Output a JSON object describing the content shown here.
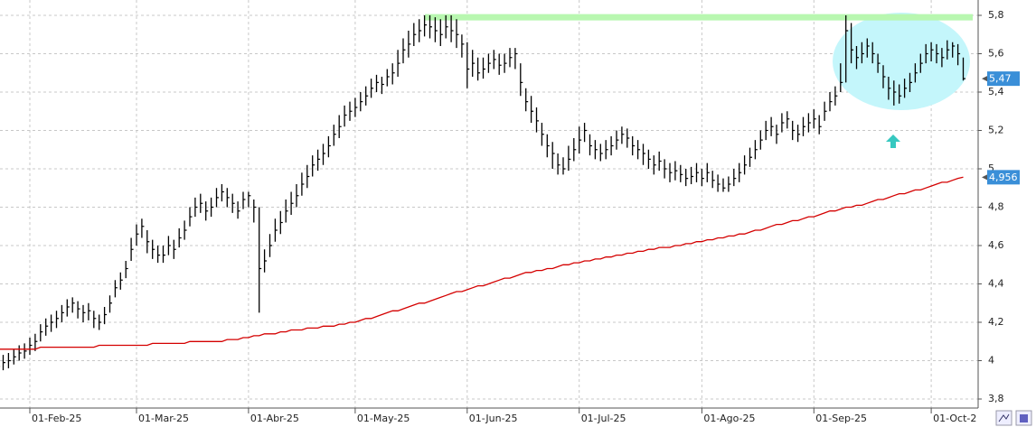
{
  "chart_data": {
    "type": "ohlc",
    "categories": [
      null,
      null,
      null,
      null,
      null,
      null,
      "01-Feb-25",
      null,
      null,
      null,
      null,
      null,
      null,
      null,
      null,
      null,
      null,
      null,
      null,
      null,
      null,
      null,
      null,
      null,
      null,
      null,
      "01-Mar-25",
      null,
      null,
      null,
      null,
      null,
      null,
      null,
      null,
      null,
      null,
      null,
      null,
      null,
      null,
      null,
      null,
      null,
      null,
      null,
      null,
      "01-Abr-25",
      null,
      null,
      null,
      null,
      null,
      null,
      null,
      null,
      null,
      null,
      null,
      null,
      null,
      null,
      null,
      null,
      null,
      null,
      null,
      "01-May-25",
      null,
      null,
      null,
      null,
      null,
      null,
      null,
      null,
      null,
      null,
      null,
      null,
      null,
      null,
      null,
      null,
      null,
      null,
      null,
      null,
      "01-Jun-25",
      null,
      null,
      null,
      null,
      null,
      null,
      null,
      null,
      null,
      null,
      null,
      null,
      null,
      null,
      null,
      null,
      null,
      null,
      null,
      null,
      "01-Jul-25",
      null,
      null,
      null,
      null,
      null,
      null,
      null,
      null,
      null,
      null,
      null,
      null,
      null,
      null,
      null,
      null,
      null,
      null,
      null,
      null,
      null,
      null,
      "01-Ago-25",
      null,
      null,
      null,
      null,
      null,
      null,
      null,
      null,
      null,
      null,
      null,
      null,
      null,
      null,
      null,
      null,
      null,
      null,
      null,
      null,
      "01-Sep-25",
      null,
      null,
      null,
      null,
      null,
      null,
      null,
      null,
      null,
      null,
      null,
      null,
      null,
      null,
      null,
      null,
      null,
      null,
      null,
      null,
      null,
      "01-Oct-2",
      null,
      null,
      null,
      null,
      null,
      null
    ],
    "ohlc": {
      "color": "#000000",
      "close": [
        3.97,
        3.99,
        4.0,
        4.02,
        4.04,
        4.05,
        4.08,
        4.1,
        4.15,
        4.18,
        4.2,
        4.22,
        4.25,
        4.28,
        4.3,
        4.27,
        4.25,
        4.26,
        4.22,
        4.2,
        4.24,
        4.3,
        4.38,
        4.42,
        4.48,
        4.58,
        4.66,
        4.7,
        4.62,
        4.58,
        4.55,
        4.55,
        4.6,
        4.58,
        4.64,
        4.68,
        4.75,
        4.8,
        4.82,
        4.78,
        4.8,
        4.85,
        4.88,
        4.85,
        4.82,
        4.78,
        4.84,
        4.86,
        4.8,
        4.48,
        4.52,
        4.6,
        4.68,
        4.72,
        4.78,
        4.82,
        4.86,
        4.92,
        4.96,
        5.02,
        5.05,
        5.08,
        5.12,
        5.18,
        5.22,
        5.28,
        5.3,
        5.32,
        5.35,
        5.38,
        5.42,
        5.45,
        5.44,
        5.48,
        5.5,
        5.55,
        5.62,
        5.65,
        5.7,
        5.72,
        5.75,
        5.74,
        5.72,
        5.7,
        5.74,
        5.72,
        5.7,
        5.65,
        5.52,
        5.55,
        5.5,
        5.52,
        5.55,
        5.57,
        5.54,
        5.55,
        5.58,
        5.6,
        5.45,
        5.35,
        5.3,
        5.25,
        5.18,
        5.12,
        5.08,
        5.02,
        5.0,
        5.05,
        5.1,
        5.15,
        5.2,
        5.12,
        5.1,
        5.08,
        5.1,
        5.12,
        5.15,
        5.18,
        5.16,
        5.12,
        5.1,
        5.08,
        5.05,
        5.02,
        5.04,
        5.0,
        4.98,
        4.99,
        4.97,
        4.95,
        4.96,
        4.98,
        4.95,
        4.98,
        4.94,
        4.92,
        4.9,
        4.92,
        4.95,
        4.98,
        5.02,
        5.06,
        5.1,
        5.15,
        5.2,
        5.22,
        5.18,
        5.24,
        5.26,
        5.2,
        5.18,
        5.22,
        5.24,
        5.26,
        5.22,
        5.3,
        5.35,
        5.38,
        5.45,
        5.72,
        5.62,
        5.58,
        5.6,
        5.64,
        5.6,
        5.55,
        5.48,
        5.42,
        5.4,
        5.38,
        5.42,
        5.45,
        5.5,
        5.55,
        5.6,
        5.62,
        5.6,
        5.58,
        5.62,
        5.64,
        5.6,
        5.47
      ],
      "high": [
        4.01,
        4.03,
        4.04,
        4.06,
        4.08,
        4.09,
        4.12,
        4.14,
        4.19,
        4.22,
        4.24,
        4.26,
        4.29,
        4.32,
        4.33,
        4.31,
        4.29,
        4.3,
        4.26,
        4.24,
        4.28,
        4.34,
        4.42,
        4.46,
        4.52,
        4.64,
        4.71,
        4.74,
        4.68,
        4.63,
        4.6,
        4.6,
        4.65,
        4.63,
        4.69,
        4.73,
        4.8,
        4.85,
        4.87,
        4.83,
        4.85,
        4.9,
        4.92,
        4.9,
        4.87,
        4.83,
        4.88,
        4.88,
        4.84,
        4.8,
        4.58,
        4.66,
        4.74,
        4.78,
        4.84,
        4.88,
        4.92,
        4.98,
        5.02,
        5.07,
        5.1,
        5.13,
        5.17,
        5.23,
        5.28,
        5.33,
        5.35,
        5.37,
        5.4,
        5.43,
        5.47,
        5.49,
        5.48,
        5.52,
        5.55,
        5.62,
        5.68,
        5.72,
        5.76,
        5.78,
        5.8,
        5.8,
        5.79,
        5.78,
        5.8,
        5.8,
        5.78,
        5.7,
        5.66,
        5.62,
        5.58,
        5.58,
        5.6,
        5.62,
        5.6,
        5.6,
        5.63,
        5.63,
        5.55,
        5.42,
        5.38,
        5.32,
        5.24,
        5.18,
        5.14,
        5.08,
        5.06,
        5.12,
        5.16,
        5.22,
        5.24,
        5.18,
        5.15,
        5.13,
        5.15,
        5.17,
        5.2,
        5.22,
        5.21,
        5.17,
        5.15,
        5.13,
        5.1,
        5.07,
        5.09,
        5.05,
        5.03,
        5.04,
        5.02,
        5.0,
        5.01,
        5.03,
        5.0,
        5.03,
        4.99,
        4.97,
        4.95,
        4.96,
        5.0,
        5.03,
        5.07,
        5.11,
        5.15,
        5.2,
        5.25,
        5.27,
        5.23,
        5.29,
        5.3,
        5.25,
        5.23,
        5.27,
        5.29,
        5.31,
        5.28,
        5.35,
        5.4,
        5.43,
        5.55,
        5.8,
        5.76,
        5.64,
        5.66,
        5.68,
        5.66,
        5.6,
        5.54,
        5.48,
        5.46,
        5.44,
        5.47,
        5.5,
        5.55,
        5.6,
        5.65,
        5.66,
        5.65,
        5.63,
        5.67,
        5.66,
        5.65,
        5.58
      ],
      "low": [
        3.93,
        3.95,
        3.96,
        3.98,
        4.0,
        4.01,
        4.03,
        4.05,
        4.1,
        4.13,
        4.15,
        4.17,
        4.2,
        4.23,
        4.25,
        4.22,
        4.2,
        4.21,
        4.17,
        4.16,
        4.19,
        4.25,
        4.33,
        4.37,
        4.43,
        4.52,
        4.6,
        4.64,
        4.56,
        4.53,
        4.51,
        4.51,
        4.55,
        4.53,
        4.59,
        4.63,
        4.7,
        4.75,
        4.77,
        4.73,
        4.75,
        4.8,
        4.83,
        4.8,
        4.77,
        4.74,
        4.79,
        4.8,
        4.72,
        4.25,
        4.46,
        4.54,
        4.62,
        4.66,
        4.72,
        4.76,
        4.8,
        4.86,
        4.9,
        4.96,
        4.99,
        5.02,
        5.06,
        5.12,
        5.16,
        5.22,
        5.25,
        5.27,
        5.3,
        5.33,
        5.37,
        5.4,
        5.39,
        5.43,
        5.44,
        5.48,
        5.55,
        5.58,
        5.64,
        5.66,
        5.69,
        5.68,
        5.66,
        5.64,
        5.68,
        5.66,
        5.63,
        5.58,
        5.42,
        5.48,
        5.46,
        5.47,
        5.5,
        5.52,
        5.49,
        5.5,
        5.53,
        5.52,
        5.38,
        5.3,
        5.24,
        5.19,
        5.12,
        5.06,
        5.0,
        4.97,
        4.97,
        4.99,
        5.04,
        5.08,
        5.14,
        5.07,
        5.05,
        5.04,
        5.05,
        5.07,
        5.1,
        5.13,
        5.11,
        5.07,
        5.05,
        5.02,
        5.0,
        4.97,
        4.99,
        4.95,
        4.93,
        4.94,
        4.93,
        4.91,
        4.92,
        4.93,
        4.91,
        4.93,
        4.9,
        4.88,
        4.88,
        4.88,
        4.91,
        4.93,
        4.97,
        5.01,
        5.05,
        5.1,
        5.15,
        5.17,
        5.13,
        5.19,
        5.21,
        5.15,
        5.14,
        5.17,
        5.19,
        5.21,
        5.18,
        5.25,
        5.3,
        5.33,
        5.4,
        5.45,
        5.55,
        5.52,
        5.55,
        5.58,
        5.55,
        5.5,
        5.42,
        5.36,
        5.33,
        5.34,
        5.37,
        5.4,
        5.45,
        5.5,
        5.55,
        5.56,
        5.55,
        5.53,
        5.57,
        5.58,
        5.54,
        5.46
      ],
      "last_label": "5,47",
      "label_color": "#3a8fd8"
    },
    "moving_average": {
      "color": "#d40000",
      "values": [
        4.06,
        4.06,
        4.06,
        4.06,
        4.06,
        4.06,
        4.06,
        4.06,
        4.07,
        4.07,
        4.07,
        4.07,
        4.07,
        4.07,
        4.07,
        4.07,
        4.07,
        4.07,
        4.07,
        4.08,
        4.08,
        4.08,
        4.08,
        4.08,
        4.08,
        4.08,
        4.08,
        4.08,
        4.08,
        4.09,
        4.09,
        4.09,
        4.09,
        4.09,
        4.09,
        4.09,
        4.1,
        4.1,
        4.1,
        4.1,
        4.1,
        4.1,
        4.1,
        4.11,
        4.11,
        4.11,
        4.12,
        4.12,
        4.13,
        4.13,
        4.14,
        4.14,
        4.14,
        4.15,
        4.15,
        4.16,
        4.16,
        4.16,
        4.17,
        4.17,
        4.17,
        4.18,
        4.18,
        4.18,
        4.19,
        4.19,
        4.2,
        4.2,
        4.21,
        4.22,
        4.22,
        4.23,
        4.24,
        4.25,
        4.26,
        4.26,
        4.27,
        4.28,
        4.29,
        4.3,
        4.3,
        4.31,
        4.32,
        4.33,
        4.34,
        4.35,
        4.36,
        4.36,
        4.37,
        4.38,
        4.39,
        4.39,
        4.4,
        4.41,
        4.42,
        4.43,
        4.43,
        4.44,
        4.45,
        4.46,
        4.46,
        4.47,
        4.47,
        4.48,
        4.48,
        4.49,
        4.5,
        4.5,
        4.51,
        4.51,
        4.52,
        4.52,
        4.53,
        4.53,
        4.54,
        4.54,
        4.55,
        4.55,
        4.56,
        4.56,
        4.57,
        4.57,
        4.58,
        4.58,
        4.59,
        4.59,
        4.59,
        4.6,
        4.6,
        4.61,
        4.61,
        4.62,
        4.62,
        4.63,
        4.63,
        4.64,
        4.64,
        4.65,
        4.65,
        4.66,
        4.66,
        4.67,
        4.68,
        4.68,
        4.69,
        4.7,
        4.71,
        4.71,
        4.72,
        4.73,
        4.73,
        4.74,
        4.75,
        4.75,
        4.76,
        4.77,
        4.78,
        4.78,
        4.79,
        4.8,
        4.8,
        4.81,
        4.81,
        4.82,
        4.83,
        4.84,
        4.84,
        4.85,
        4.86,
        4.87,
        4.87,
        4.88,
        4.89,
        4.89,
        4.9,
        4.91,
        4.92,
        4.93,
        4.93,
        4.94,
        4.95,
        4.956
      ],
      "last_label": "4,956",
      "label_color": "#3a8fd8"
    },
    "resistance_level": 5.79,
    "resistance_color": "#b8f7b0",
    "ylim": [
      3.8,
      5.82
    ],
    "yticks": [
      {
        "value": 3.8,
        "label": "3,8"
      },
      4,
      {
        "value": 4.2,
        "label": "4,2"
      },
      {
        "value": 4.4,
        "label": "4,4"
      },
      {
        "value": 4.6,
        "label": "4,6"
      },
      {
        "value": 4.8,
        "label": "4,8"
      },
      5,
      {
        "value": 5.2,
        "label": "5,2"
      },
      {
        "value": 5.4,
        "label": "5,4"
      },
      {
        "value": 5.6,
        "label": "5,6"
      },
      {
        "value": 5.8,
        "label": "5,8"
      }
    ],
    "grid": true
  }
}
